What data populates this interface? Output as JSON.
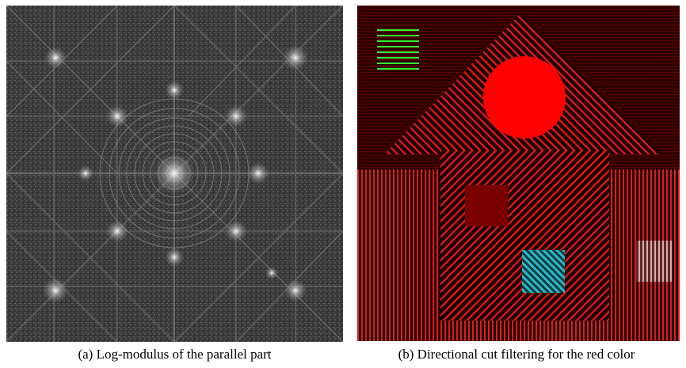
{
  "figure": {
    "panel_a": {
      "caption": "(a)  Log-modulus of the parallel part",
      "image": "fourier-log-modulus-spectrum",
      "colors": {
        "background": "#3b3b3b",
        "highlight": "#e8e8e8"
      }
    },
    "panel_b": {
      "caption": "(b)  Directional cut filtering for the red color",
      "image": "filtered-house-image-red-channel",
      "colors": {
        "background": "#1a0000",
        "stripes": "#e01a1a",
        "disk": "#ff0000",
        "dark_square": "#7a0000",
        "green_lines": "#33ee33",
        "cyan_square": "#2ab8c8",
        "pale_lines": "#e0a8a8"
      }
    }
  }
}
